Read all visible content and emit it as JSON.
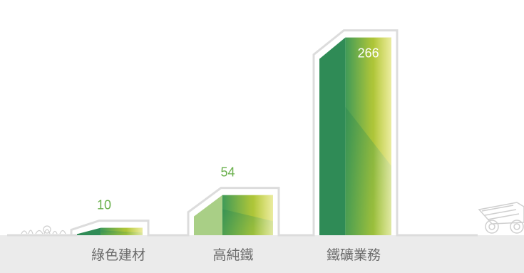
{
  "chart_data": {
    "type": "bar",
    "categories": [
      "綠色建材",
      "高純鐵",
      "鐵礦業務"
    ],
    "values": [
      10,
      54,
      266
    ],
    "title": "",
    "xlabel": "",
    "ylabel": "",
    "ylim": [
      0,
      280
    ],
    "grid": false,
    "legend": "none"
  },
  "colors": {
    "bar_dark_green": "#2e8b57",
    "bar_mid_green": "#4da35a",
    "bar_yellow_green": "#c8cf2a",
    "outline": "#dcdcdc",
    "ground_band": "#ebebeb",
    "small_value_label": "#6ab04c",
    "large_value_label": "#ffffff",
    "category_label": "#6b6b6b"
  },
  "decorations": [
    "grass-tuft-icon",
    "mining-truck-icon"
  ]
}
